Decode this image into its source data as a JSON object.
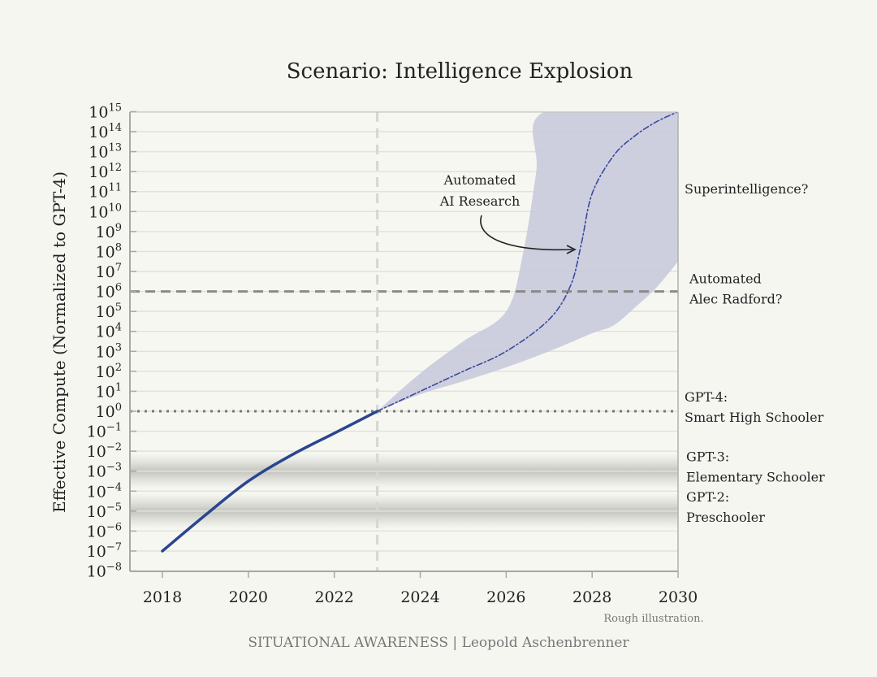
{
  "chart_data": {
    "type": "line",
    "title": "Scenario: Intelligence Explosion",
    "ylabel": "Effective Compute (Normalized to GPT-4)",
    "xlabel": "",
    "yscale": "log",
    "ylim_exponent": [
      -8,
      15
    ],
    "xlim": [
      2017.25,
      2030
    ],
    "xticks": [
      2018,
      2020,
      2022,
      2024,
      2026,
      2028,
      2030
    ],
    "yticks_exponent": [
      15,
      14,
      13,
      12,
      11,
      10,
      9,
      8,
      7,
      6,
      5,
      4,
      3,
      2,
      1,
      0,
      -1,
      -2,
      -3,
      -4,
      -5,
      -6,
      -7,
      -8
    ],
    "grid": true,
    "series": [
      {
        "style": "solid",
        "color": "#2a4590",
        "x": [
          2018,
          2019,
          2020,
          2021,
          2022,
          2023
        ],
        "log10_y": [
          -7,
          -5.2,
          -3.5,
          -2.2,
          -1.1,
          0
        ]
      },
      {
        "style": "dash-dot",
        "color": "#3a4aa0",
        "x": [
          2023,
          2024,
          2025,
          2026,
          2027,
          2027.5,
          2027.75,
          2028,
          2028.5,
          2029,
          2029.5,
          2030
        ],
        "log10_y": [
          0,
          1.0,
          2.0,
          3.0,
          4.6,
          6.3,
          8.4,
          10.9,
          12.8,
          13.8,
          14.5,
          15
        ]
      }
    ],
    "band": {
      "color": "#c9cadb",
      "upper": {
        "x": [
          2023,
          2024,
          2025,
          2026,
          2026.4,
          2026.7,
          2026.9,
          2030
        ],
        "log10_y": [
          0,
          1.9,
          3.5,
          5.0,
          8,
          12,
          15,
          15
        ]
      },
      "lower": {
        "x": [
          2023,
          2024,
          2025,
          2026,
          2027,
          2028,
          2028.5,
          2029,
          2029.5,
          2030
        ],
        "log10_y": [
          0,
          0.85,
          1.5,
          2.2,
          3.0,
          3.9,
          4.3,
          5.2,
          6.2,
          7.5
        ]
      }
    },
    "reference_lines": [
      {
        "log10_y": 6,
        "style": "dashed",
        "label": [
          "Automated",
          "Alec Radford?"
        ]
      },
      {
        "log10_y": 0,
        "style": "dotted",
        "label": [
          "GPT-4:",
          "Smart High Schooler"
        ]
      }
    ],
    "vertical_line": {
      "x": 2023,
      "style": "dashed"
    },
    "shaded_levels": [
      {
        "log10_y": -3,
        "label": [
          "GPT-3:",
          "Elementary Schooler"
        ]
      },
      {
        "log10_y": -5,
        "label": [
          "GPT-2:",
          "Preschooler"
        ]
      }
    ],
    "annotations": {
      "superintelligence": "Superintelligence?",
      "automated_research": [
        "Automated",
        "AI Research"
      ],
      "note": "Rough illustration."
    }
  },
  "footer": "SITUATIONAL AWARENESS | Leopold Aschenbrenner"
}
